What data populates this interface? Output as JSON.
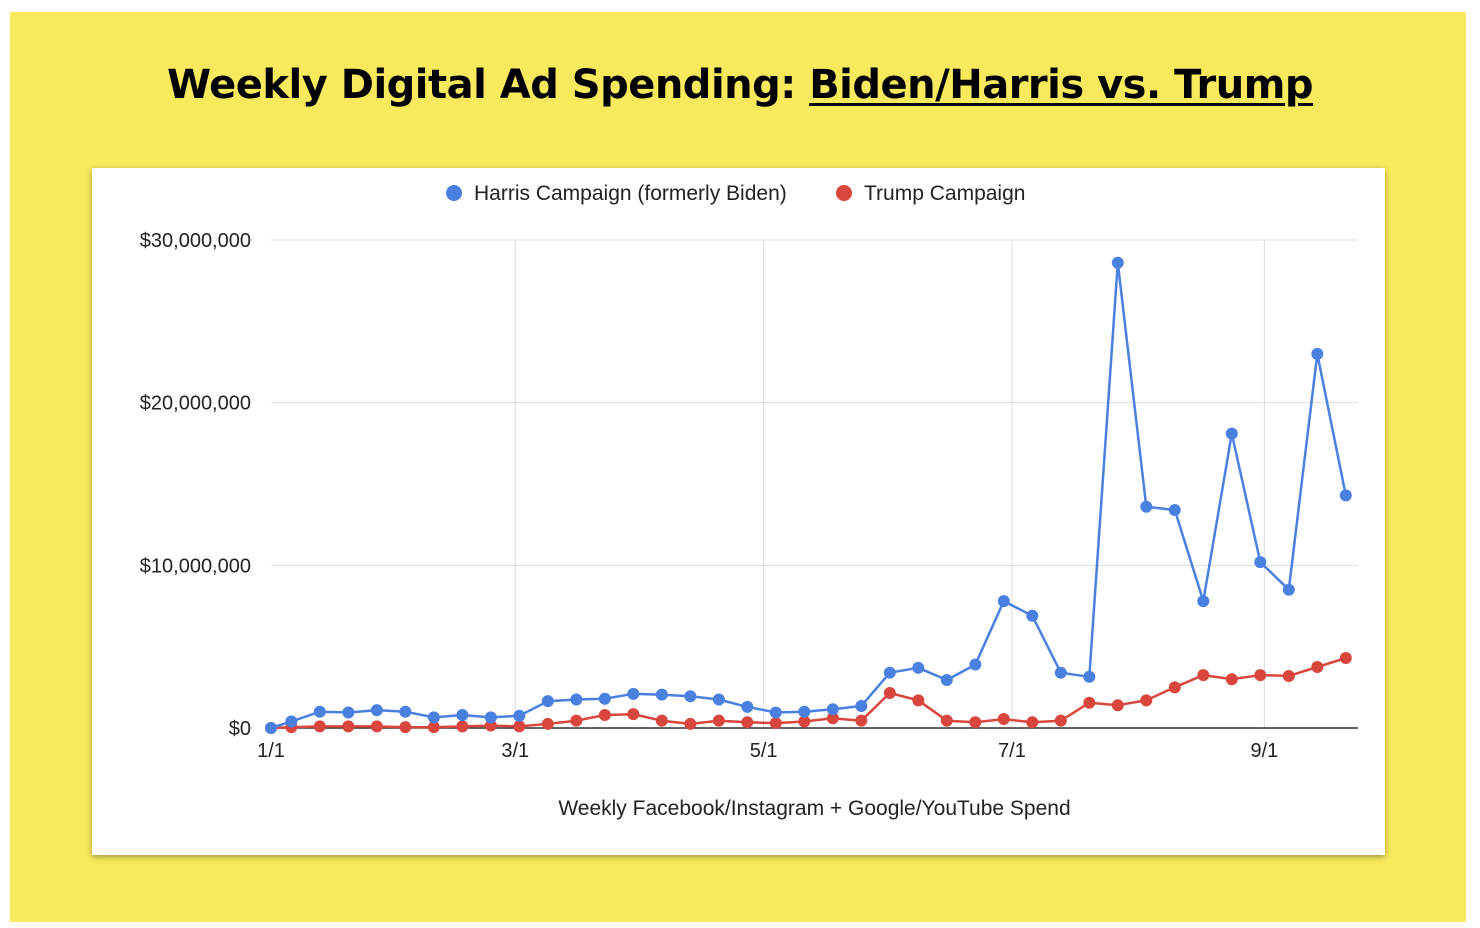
{
  "title": {
    "prefix": "Weekly Digital Ad Spending: ",
    "emphasis": "Biden/Harris vs. Trump"
  },
  "colors": {
    "background": "#f8ea5c",
    "harris": "#4a80e0",
    "trump": "#d9463e",
    "grid": "#dddddd"
  },
  "chart_data": {
    "type": "line",
    "title": "",
    "xlabel": "Weekly Facebook/Instagram + Google/YouTube Spend",
    "ylabel": "",
    "ylim": [
      0,
      30000000
    ],
    "yticks": [
      0,
      10000000,
      20000000,
      30000000
    ],
    "ytick_labels": [
      "$0",
      "$10,000,000",
      "$20,000,000",
      "$30,000,000"
    ],
    "x_unit": "days since Jan 1",
    "xlim": [
      0,
      267
    ],
    "xticks": [
      0,
      60,
      121,
      182,
      244
    ],
    "xtick_labels": [
      "1/1",
      "3/1",
      "5/1",
      "7/1",
      "9/1"
    ],
    "legend_position": "top-center",
    "series": [
      {
        "name": "Harris Campaign (formerly Biden)",
        "color": "#4a80e0",
        "x": [
          0,
          5,
          12,
          19,
          26,
          33,
          40,
          47,
          54,
          61,
          68,
          75,
          82,
          89,
          96,
          103,
          110,
          117,
          124,
          131,
          138,
          145,
          152,
          159,
          166,
          173,
          180,
          187,
          194,
          201,
          208,
          215,
          222,
          229,
          236,
          243,
          250,
          257,
          264
        ],
        "y": [
          0,
          400000,
          1000000,
          950000,
          1100000,
          1000000,
          650000,
          800000,
          650000,
          750000,
          1650000,
          1750000,
          1800000,
          2100000,
          2050000,
          1950000,
          1750000,
          1300000,
          950000,
          1000000,
          1150000,
          1350000,
          3400000,
          3700000,
          2950000,
          3900000,
          7800000,
          6900000,
          3400000,
          3150000,
          28600000,
          13600000,
          13400000,
          7800000,
          18100000,
          10200000,
          8500000,
          23000000,
          14300000
        ]
      },
      {
        "name": "Trump Campaign",
        "color": "#d9463e",
        "x": [
          0,
          5,
          12,
          19,
          26,
          33,
          40,
          47,
          54,
          61,
          68,
          75,
          82,
          89,
          96,
          103,
          110,
          117,
          124,
          131,
          138,
          145,
          152,
          159,
          166,
          173,
          180,
          187,
          194,
          201,
          208,
          215,
          222,
          229,
          236,
          243,
          250,
          257,
          264
        ],
        "y": [
          0,
          50000,
          100000,
          100000,
          100000,
          50000,
          50000,
          100000,
          150000,
          100000,
          250000,
          450000,
          800000,
          850000,
          450000,
          250000,
          450000,
          350000,
          300000,
          400000,
          600000,
          450000,
          2150000,
          1700000,
          450000,
          350000,
          550000,
          350000,
          450000,
          1550000,
          1400000,
          1700000,
          2500000,
          3250000,
          3000000,
          3250000,
          3200000,
          3750000,
          4300000
        ]
      }
    ]
  }
}
